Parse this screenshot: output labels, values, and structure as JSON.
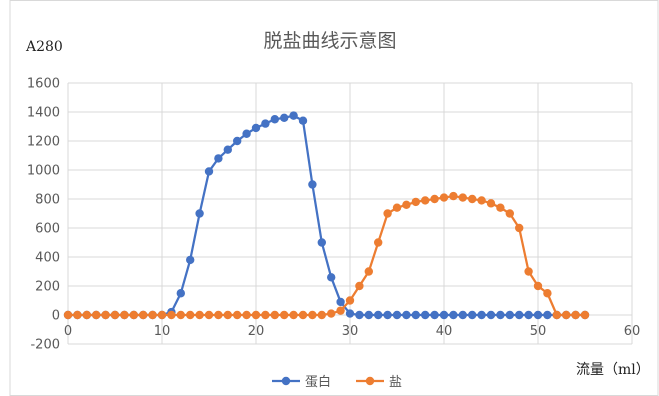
{
  "chart_data": {
    "type": "line",
    "title": "脱盐曲线示意图",
    "ylabel": "A280",
    "xlabel": "流量（ml）",
    "xlim": [
      0,
      60
    ],
    "ylim": [
      -200,
      1600
    ],
    "x_ticks": [
      "0",
      "10",
      "20",
      "30",
      "40",
      "50",
      "60"
    ],
    "y_ticks": [
      "-200",
      "0",
      "200",
      "400",
      "600",
      "800",
      "1000",
      "1200",
      "1400",
      "1600"
    ],
    "grid": true,
    "legend_position": "bottom",
    "series": [
      {
        "name": "蛋白",
        "color": "#4472C4",
        "x": [
          0,
          1,
          2,
          3,
          4,
          5,
          6,
          7,
          8,
          9,
          10,
          11,
          12,
          13,
          14,
          15,
          16,
          17,
          18,
          19,
          20,
          21,
          22,
          23,
          24,
          25,
          26,
          27,
          28,
          29,
          30,
          31,
          32,
          33,
          34,
          35,
          36,
          37,
          38,
          39,
          40,
          41,
          42,
          43,
          44,
          45,
          46,
          47,
          48,
          49,
          50,
          51,
          52,
          53,
          54,
          55
        ],
        "y": [
          0,
          0,
          0,
          0,
          0,
          0,
          0,
          0,
          0,
          0,
          0,
          20,
          150,
          380,
          700,
          990,
          1080,
          1140,
          1200,
          1250,
          1290,
          1320,
          1350,
          1360,
          1375,
          1340,
          900,
          500,
          260,
          90,
          10,
          0,
          0,
          0,
          0,
          0,
          0,
          0,
          0,
          0,
          0,
          0,
          0,
          0,
          0,
          0,
          0,
          0,
          0,
          0,
          0,
          0,
          0,
          0,
          0,
          0
        ]
      },
      {
        "name": "盐",
        "color": "#ED7D31",
        "x": [
          0,
          1,
          2,
          3,
          4,
          5,
          6,
          7,
          8,
          9,
          10,
          11,
          12,
          13,
          14,
          15,
          16,
          17,
          18,
          19,
          20,
          21,
          22,
          23,
          24,
          25,
          26,
          27,
          28,
          29,
          30,
          31,
          32,
          33,
          34,
          35,
          36,
          37,
          38,
          39,
          40,
          41,
          42,
          43,
          44,
          45,
          46,
          47,
          48,
          49,
          50,
          51,
          52,
          53,
          54,
          55
        ],
        "y": [
          0,
          0,
          0,
          0,
          0,
          0,
          0,
          0,
          0,
          0,
          0,
          0,
          0,
          0,
          0,
          0,
          0,
          0,
          0,
          0,
          0,
          0,
          0,
          0,
          0,
          0,
          0,
          0,
          10,
          30,
          100,
          200,
          300,
          500,
          700,
          740,
          760,
          780,
          790,
          800,
          810,
          820,
          810,
          800,
          790,
          770,
          740,
          700,
          600,
          300,
          200,
          150,
          0,
          0,
          0,
          0
        ]
      }
    ]
  }
}
